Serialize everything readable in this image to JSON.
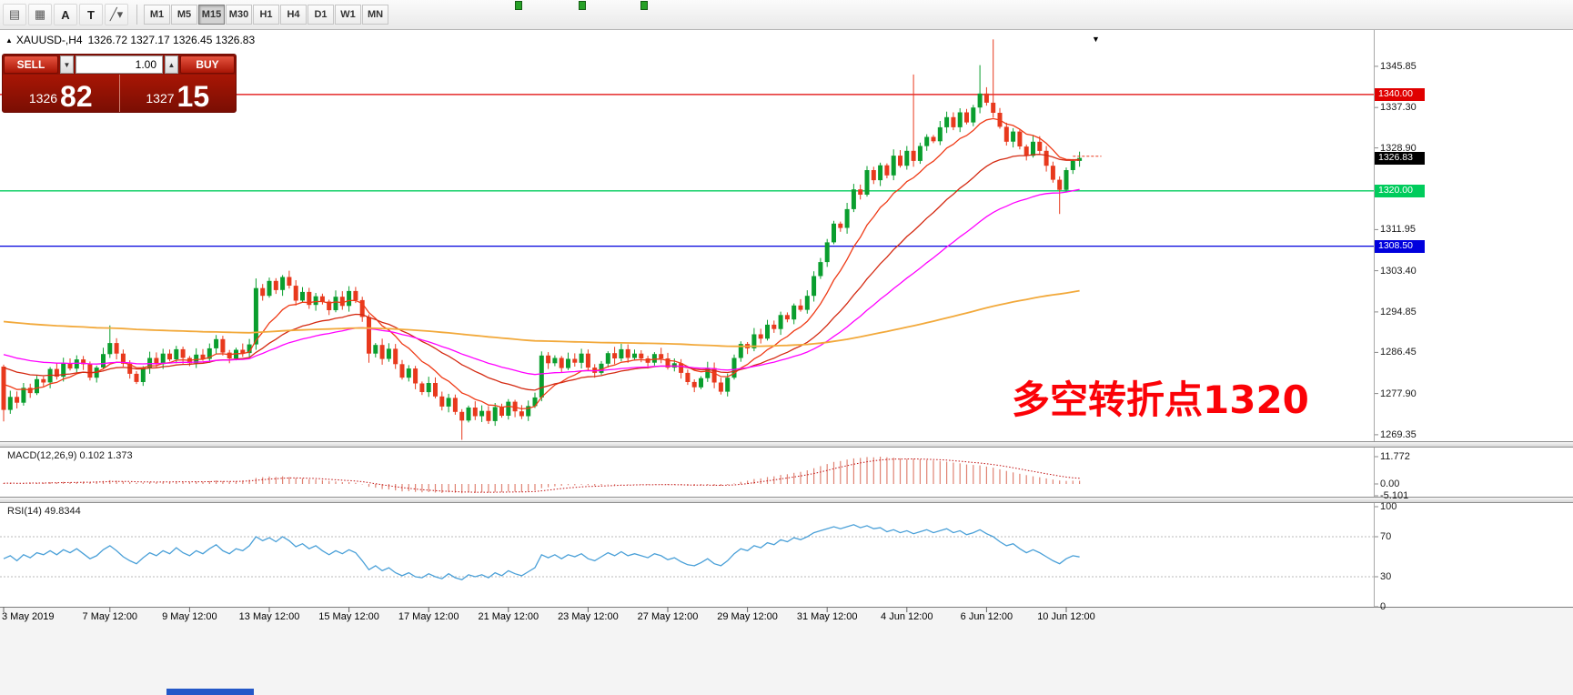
{
  "toolbar": {
    "tool_icons": [
      {
        "name": "chart-window-icon",
        "glyph": "▤"
      },
      {
        "name": "data-grid-icon",
        "glyph": "▦"
      },
      {
        "name": "text-label-icon",
        "glyph": "A"
      },
      {
        "name": "text-box-icon",
        "glyph": "T"
      },
      {
        "name": "draw-tools-icon",
        "glyph": "╱",
        "caret": "▾"
      }
    ],
    "timeframes": [
      "M1",
      "M5",
      "M15",
      "M30",
      "H1",
      "H4",
      "D1",
      "W1",
      "MN"
    ],
    "active_timeframe": "M15"
  },
  "chart_header": {
    "collapse_icon": "▲",
    "symbol_period": "XAUUSD-,H4",
    "ohlc": "1326.72 1327.17 1326.45 1326.83",
    "shift_icon": "▼"
  },
  "trade_panel": {
    "sell_label": "SELL",
    "buy_label": "BUY",
    "volume": "1.00",
    "down_icon": "▼",
    "up_icon": "▲",
    "bid_main": "1326",
    "bid_big": "82",
    "ask_main": "1327",
    "ask_big": "15"
  },
  "annotation": {
    "text": "多空转折点1320",
    "color": "#fb0207"
  },
  "price_axis": {
    "ticks": [
      "1345.85",
      "1337.30",
      "1328.90",
      "1311.95",
      "1303.40",
      "1294.85",
      "1286.45",
      "1277.90",
      "1269.35"
    ],
    "levels": [
      {
        "label": "1340.00",
        "price": 1340.0,
        "color": "#e00000"
      },
      {
        "label": "1320.00",
        "price": 1320.0,
        "color": "#00cc5c"
      },
      {
        "label": "1308.50",
        "price": 1308.5,
        "color": "#0000dd"
      }
    ],
    "current": {
      "label": "1326.83",
      "price": 1326.83,
      "bg": "#000000"
    }
  },
  "macd": {
    "label": "MACD(12,26,9) 0.102 1.373",
    "axis": [
      "11.772",
      "0.00",
      "-5.101"
    ],
    "bar_color": "#e08272",
    "signal_color": "#c01010",
    "values": [
      0.3,
      0.5,
      0.2,
      0.4,
      0.6,
      0.4,
      0.5,
      0.8,
      0.6,
      0.9,
      0.7,
      0.8,
      1.0,
      0.8,
      1.1,
      1.3,
      1.6,
      1.4,
      1.1,
      0.8,
      0.5,
      0.6,
      0.9,
      0.7,
      1.0,
      0.9,
      1.2,
      1.0,
      0.8,
      1.0,
      0.9,
      1.2,
      1.5,
      1.2,
      1.0,
      1.2,
      1.5,
      1.8,
      2.6,
      2.9,
      3.2,
      3.0,
      3.3,
      3.0,
      2.6,
      2.4,
      2.0,
      1.9,
      1.6,
      1.2,
      1.1,
      0.8,
      0.8,
      0.5,
      -0.2,
      -1.2,
      -1.6,
      -2.2,
      -2.4,
      -2.8,
      -3.2,
      -3.1,
      -3.4,
      -3.6,
      -3.5,
      -3.7,
      -3.9,
      -3.6,
      -3.8,
      -4.0,
      -3.7,
      -3.8,
      -3.6,
      -3.7,
      -3.4,
      -3.5,
      -3.2,
      -3.3,
      -3.4,
      -3.1,
      -2.8,
      -1.8,
      -1.4,
      -1.0,
      -0.8,
      -0.5,
      -0.6,
      -0.3,
      -0.5,
      -0.7,
      -0.5,
      -0.2,
      -0.3,
      -0.1,
      -0.2,
      -0.1,
      -0.2,
      -0.3,
      -0.1,
      -0.2,
      -0.4,
      -0.3,
      -0.5,
      -0.7,
      -0.8,
      -0.6,
      -0.4,
      -0.7,
      -0.8,
      -0.4,
      0.2,
      0.9,
      1.4,
      2.1,
      2.4,
      3.0,
      3.3,
      3.9,
      4.2,
      4.8,
      5.2,
      5.9,
      6.8,
      7.7,
      8.6,
      9.5,
      9.9,
      10.5,
      11.0,
      11.2,
      11.6,
      11.5,
      11.77,
      11.5,
      11.3,
      11.0,
      10.8,
      10.9,
      10.6,
      10.4,
      10.1,
      9.9,
      9.6,
      9.2,
      8.9,
      8.4,
      8.2,
      8.0,
      7.5,
      7.0,
      6.3,
      5.6,
      5.0,
      4.4,
      3.8,
      3.3,
      2.9,
      2.4,
      1.9,
      1.5,
      1.3,
      1.4,
      1.37
    ]
  },
  "rsi": {
    "label": "RSI(14) 49.8344",
    "axis": [
      "100",
      "70",
      "30",
      "0"
    ],
    "levels": [
      70,
      30
    ],
    "line_color": "#4aa0d8",
    "values": [
      48,
      51,
      46,
      52,
      49,
      54,
      52,
      56,
      52,
      57,
      54,
      58,
      53,
      48,
      51,
      57,
      61,
      56,
      50,
      46,
      43,
      49,
      54,
      51,
      56,
      53,
      59,
      54,
      51,
      56,
      53,
      58,
      62,
      56,
      53,
      58,
      56,
      61,
      70,
      66,
      69,
      65,
      70,
      66,
      60,
      63,
      58,
      61,
      56,
      52,
      56,
      53,
      57,
      54,
      46,
      37,
      41,
      36,
      39,
      34,
      31,
      34,
      30,
      29,
      33,
      30,
      28,
      33,
      29,
      27,
      32,
      30,
      32,
      29,
      34,
      31,
      36,
      33,
      31,
      35,
      39,
      52,
      49,
      52,
      48,
      52,
      50,
      53,
      48,
      46,
      50,
      54,
      51,
      55,
      51,
      53,
      51,
      49,
      53,
      51,
      47,
      49,
      45,
      42,
      41,
      44,
      48,
      43,
      41,
      46,
      53,
      58,
      56,
      61,
      59,
      64,
      62,
      67,
      65,
      69,
      67,
      70,
      74,
      76,
      78,
      80,
      78,
      80,
      82,
      79,
      81,
      78,
      79,
      75,
      77,
      74,
      76,
      73,
      75,
      77,
      74,
      76,
      78,
      74,
      76,
      72,
      74,
      77,
      73,
      70,
      65,
      61,
      63,
      58,
      54,
      57,
      54,
      50,
      46,
      43,
      48,
      51,
      49.8
    ]
  },
  "time_axis": {
    "labels": [
      "3 May 2019",
      "7 May 12:00",
      "9 May 12:00",
      "13 May 12:00",
      "15 May 12:00",
      "17 May 12:00",
      "21 May 12:00",
      "23 May 12:00",
      "27 May 12:00",
      "29 May 12:00",
      "31 May 12:00",
      "4 Jun 12:00",
      "6 Jun 12:00",
      "10 Jun 12:00"
    ],
    "indices": [
      0,
      16,
      28,
      40,
      52,
      64,
      76,
      88,
      100,
      112,
      124,
      136,
      148,
      160
    ]
  },
  "chart_data": {
    "type": "candlestick",
    "symbol": "XAUUSD",
    "timeframe": "H4",
    "up_color": "#0a9e2e",
    "down_color": "#e8391d",
    "ma_colors": [
      "#ef3b17",
      "#d42a12",
      "#ff00ff",
      "#f2a93b"
    ],
    "first_open": 1283.5,
    "closes": [
      1274.5,
      1277.2,
      1276.0,
      1279.1,
      1278.0,
      1280.9,
      1280.2,
      1283.0,
      1281.4,
      1284.2,
      1283.1,
      1285.0,
      1284.0,
      1281.2,
      1283.3,
      1286.1,
      1288.4,
      1286.2,
      1284.1,
      1282.0,
      1280.3,
      1283.2,
      1285.3,
      1284.0,
      1286.2,
      1285.0,
      1287.1,
      1285.3,
      1284.2,
      1286.0,
      1285.1,
      1287.3,
      1289.2,
      1286.4,
      1285.2,
      1287.0,
      1286.3,
      1288.1,
      1299.8,
      1298.2,
      1301.3,
      1299.4,
      1302.1,
      1300.3,
      1297.2,
      1299.0,
      1296.3,
      1298.1,
      1297.0,
      1295.2,
      1298.0,
      1296.1,
      1299.2,
      1297.3,
      1293.8,
      1286.2,
      1288.0,
      1285.1,
      1287.2,
      1284.0,
      1281.2,
      1283.1,
      1280.0,
      1278.2,
      1280.1,
      1277.3,
      1275.2,
      1277.0,
      1274.1,
      1272.3,
      1275.0,
      1273.2,
      1274.3,
      1272.2,
      1275.1,
      1273.3,
      1276.2,
      1274.2,
      1273.2,
      1275.3,
      1277.1,
      1285.8,
      1284.2,
      1285.3,
      1283.2,
      1285.1,
      1284.3,
      1286.2,
      1283.3,
      1282.2,
      1284.1,
      1286.3,
      1285.2,
      1287.1,
      1285.3,
      1286.2,
      1285.2,
      1284.3,
      1286.1,
      1285.2,
      1283.3,
      1284.2,
      1282.2,
      1280.3,
      1279.2,
      1281.1,
      1283.2,
      1280.2,
      1278.3,
      1281.2,
      1285.3,
      1288.2,
      1287.3,
      1290.2,
      1289.3,
      1292.2,
      1291.3,
      1294.2,
      1293.3,
      1296.2,
      1295.3,
      1298.2,
      1302.3,
      1305.2,
      1309.3,
      1313.2,
      1312.3,
      1316.2,
      1320.3,
      1319.2,
      1324.3,
      1322.2,
      1325.3,
      1323.2,
      1327.3,
      1325.2,
      1328.3,
      1326.2,
      1329.3,
      1331.2,
      1330.3,
      1333.2,
      1335.3,
      1333.2,
      1336.3,
      1334.2,
      1337.3,
      1340.2,
      1338.3,
      1336.2,
      1333.3,
      1330.2,
      1332.3,
      1329.2,
      1327.3,
      1330.2,
      1328.3,
      1325.2,
      1322.3,
      1320.2,
      1324.3,
      1326.2,
      1326.83
    ],
    "wick_overrides": {
      "0": [
        0,
        2
      ],
      "16": [
        2.5,
        0
      ],
      "38": [
        1,
        0.5
      ],
      "55": [
        0,
        1.5
      ],
      "69": [
        0,
        3
      ],
      "137": [
        15,
        0
      ],
      "147": [
        5.5,
        0
      ],
      "149": [
        12,
        0
      ],
      "159": [
        0,
        4
      ]
    },
    "ask_price": 1327.17
  }
}
